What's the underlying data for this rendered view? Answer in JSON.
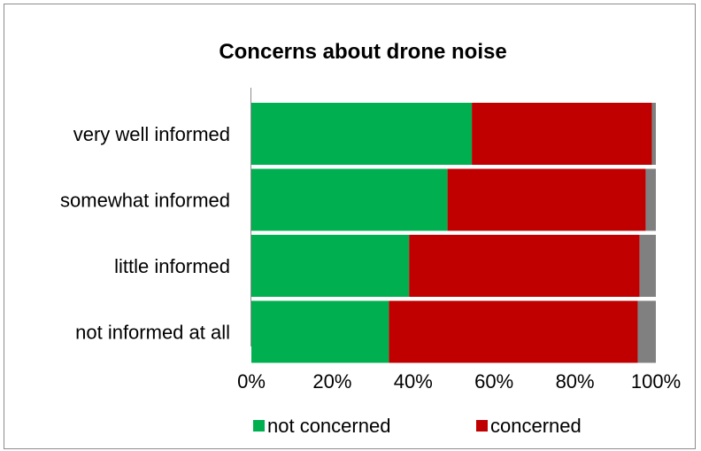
{
  "chart_data": {
    "type": "bar",
    "orientation": "horizontal",
    "stacked": "percent",
    "title": "Concerns about drone noise",
    "categories": [
      "very well informed",
      "somewhat informed",
      "little informed",
      "not informed at all"
    ],
    "series": [
      {
        "name": "not concerned",
        "color": "#00b050",
        "values": [
          54.5,
          48.5,
          39,
          34
        ]
      },
      {
        "name": "concerned",
        "color": "#c00000",
        "values": [
          44.5,
          49,
          57,
          61.5
        ]
      },
      {
        "color": "#808080",
        "values": [
          1,
          2.5,
          4,
          4.5
        ]
      }
    ],
    "xlim": [
      0,
      100
    ],
    "x_ticks": [
      "0%",
      "20%",
      "40%",
      "60%",
      "80%",
      "100%"
    ],
    "grid": false,
    "legend": {
      "position": "bottom",
      "entries": [
        "not concerned",
        "concerned"
      ]
    }
  }
}
